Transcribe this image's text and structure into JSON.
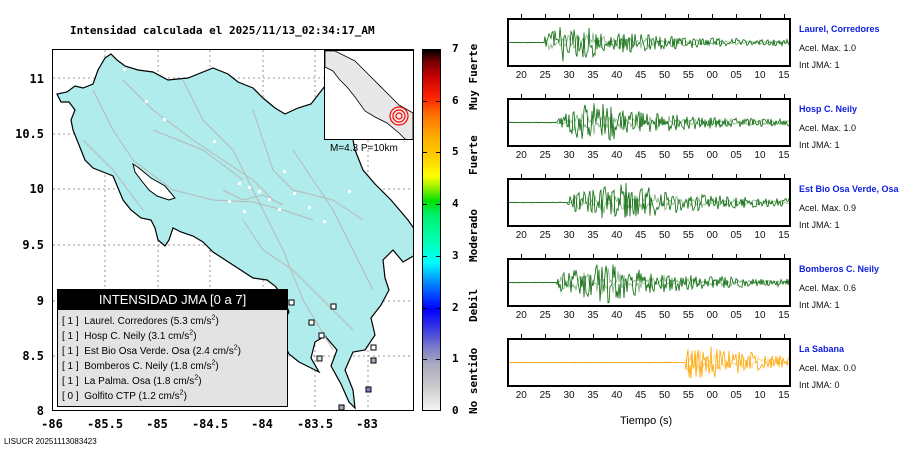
{
  "title": "Intensidad calculada el 2025/11/13_02:34:17_AM",
  "footer": "LISUCR 20251113083423",
  "map": {
    "y_ticks": [
      "11",
      "10.5",
      "10",
      "9.5",
      "9",
      "8.5",
      "8"
    ],
    "x_ticks": [
      "-86",
      "-85.5",
      "-85",
      "-84.5",
      "-84",
      "-83.5",
      "-83"
    ],
    "lat_range": [
      8,
      11.25
    ],
    "lon_range": [
      -86,
      -82.6
    ],
    "land_color": "#b0ecec",
    "inset_label": "M=4.3 P=10km",
    "epicenter_marker_color": "#ff0000"
  },
  "legend": {
    "title": "INTENSIDAD JMA [0 a 7]",
    "rows": [
      {
        "int": "[ 1 ]",
        "name": "Laurel. Corredores",
        "acc": "(5.3 cm/s",
        "sup": "2",
        "close": ")"
      },
      {
        "int": "[ 1 ]",
        "name": "Hosp C. Neily",
        "acc": "(3.1 cm/s",
        "sup": "2",
        "close": ")"
      },
      {
        "int": "[ 1 ]",
        "name": "Est Bio Osa Verde. Osa",
        "acc": "(2.4 cm/s",
        "sup": "2",
        "close": ")"
      },
      {
        "int": "[ 1 ]",
        "name": "Bomberos C. Neily",
        "acc": "(1.8 cm/s",
        "sup": "2",
        "close": ")"
      },
      {
        "int": "[ 1 ]",
        "name": "La Palma. Osa",
        "acc": "(1.8 cm/s",
        "sup": "2",
        "close": ")"
      },
      {
        "int": "[ 0 ]",
        "name": "Golfito CTP",
        "acc": "(1.2 cm/s",
        "sup": "2",
        "close": ")"
      }
    ]
  },
  "colorbar": {
    "ticks": [
      "0",
      "1",
      "2",
      "3",
      "4",
      "5",
      "6",
      "7"
    ],
    "categories": [
      "No sentido",
      "Debil",
      "Moderado",
      "Fuerte",
      "Muy Fuerte"
    ],
    "range": [
      0,
      7
    ]
  },
  "seismograms": {
    "time_ticks": [
      "20",
      "25",
      "30",
      "35",
      "40",
      "45",
      "50",
      "55",
      "00",
      "05",
      "10",
      "15"
    ],
    "xlabel": "Tiempo (s)",
    "stations": [
      {
        "name": "Laurel, Corredores",
        "acel": "Acel. Max. 1.0",
        "int": "Int JMA: 1",
        "color": "#0a6a0a",
        "onset_s": 24.5,
        "peak_s": 29
      },
      {
        "name": "Hosp C. Neily",
        "acel": "Acel. Max. 1.0",
        "int": "Int JMA: 1",
        "color": "#0a6a0a",
        "onset_s": 27,
        "peak_s": 35
      },
      {
        "name": "Est Bio Osa Verde, Osa",
        "acel": "Acel. Max. 0.9",
        "int": "Int JMA: 1",
        "color": "#0a6a0a",
        "onset_s": 29.5,
        "peak_s": 41
      },
      {
        "name": "Bomberos C. Neily",
        "acel": "Acel. Max. 0.6",
        "int": "Int JMA: 1",
        "color": "#0a6a0a",
        "onset_s": 27,
        "peak_s": 37
      },
      {
        "name": "La Sabana",
        "acel": "Acel. Max. 0.0",
        "int": "Int JMA: 0",
        "color": "#ffa500",
        "onset_s": 54.5,
        "peak_s": 55.5
      }
    ]
  }
}
